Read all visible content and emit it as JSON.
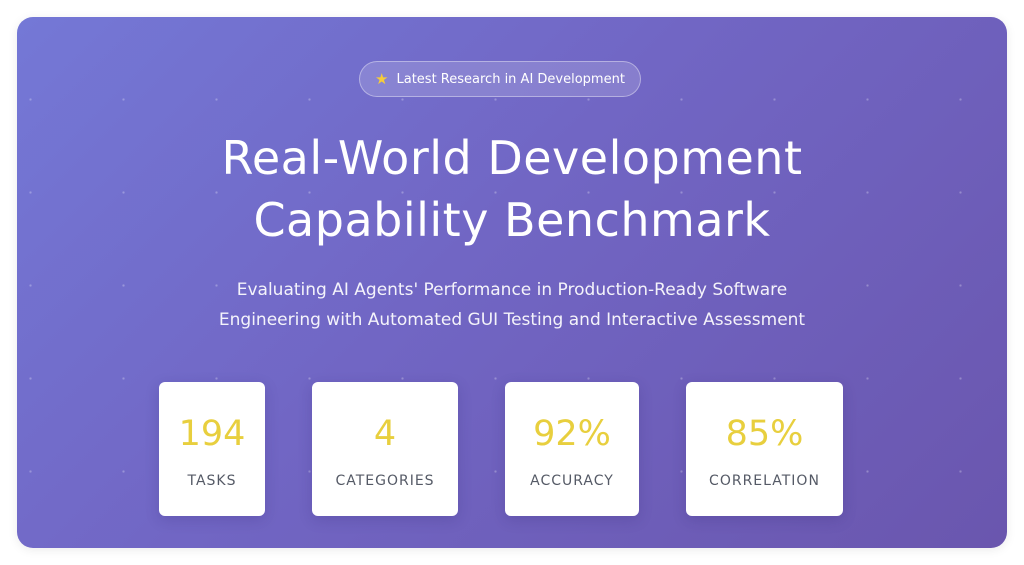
{
  "badge": {
    "icon": "star-icon",
    "text": "Latest Research in AI Development",
    "star_color": "#f5cc3a"
  },
  "hero": {
    "title_line1": "Real-World Development",
    "title_line2": "Capability Benchmark",
    "subtitle_line1": "Evaluating AI Agents' Performance in Production-Ready Software",
    "subtitle_line2": "Engineering with Automated GUI Testing and Interactive Assessment",
    "gradient_start": "#7478d6",
    "gradient_end": "#6a56ae"
  },
  "stats": [
    {
      "value": "194",
      "label": "TASKS"
    },
    {
      "value": "4",
      "label": "CATEGORIES"
    },
    {
      "value": "92%",
      "label": "ACCURACY"
    },
    {
      "value": "85%",
      "label": "CORRELATION"
    }
  ],
  "colors": {
    "stat_value": "#e8cf3e",
    "stat_label": "#555a66"
  }
}
